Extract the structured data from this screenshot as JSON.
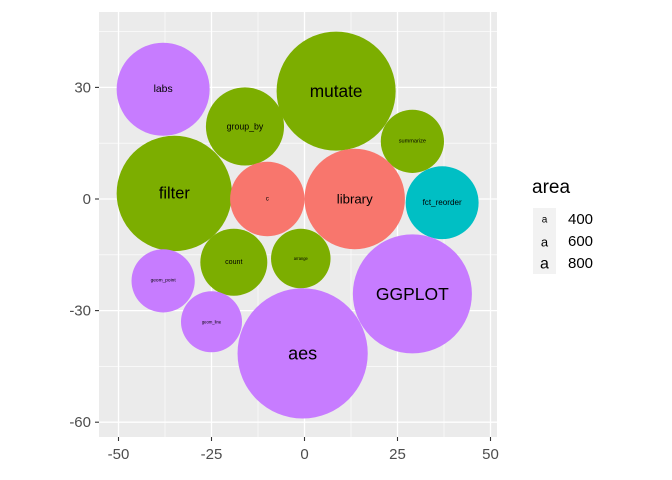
{
  "chart_data": {
    "type": "bubble",
    "x_ticks": [
      -50,
      -25,
      0,
      25,
      50
    ],
    "y_ticks": [
      -60,
      -30,
      0,
      30
    ],
    "x_tick_labels": [
      "-50",
      "-25",
      "0",
      "25",
      "50"
    ],
    "y_tick_labels": [
      "-60",
      "-30",
      "0",
      "30"
    ],
    "xlim": [
      -55,
      51
    ],
    "ylim": [
      -63,
      50
    ],
    "grid": true,
    "legend": {
      "title": "area",
      "placement": "right",
      "glyph": "a",
      "entries": [
        {
          "label": "400",
          "value": 400
        },
        {
          "label": "600",
          "value": 600
        },
        {
          "label": "800",
          "value": 800
        }
      ]
    },
    "colors": {
      "red": "#F8766D",
      "green": "#7CAE00",
      "teal": "#00BFC4",
      "purple": "#C77CFF",
      "panel": "#EBEBEB",
      "grid": "#FFFFFF"
    },
    "bubbles": [
      {
        "label": "labs",
        "x": -38,
        "y": 29.5,
        "r": 12.5,
        "color": "purple",
        "area": 420
      },
      {
        "label": "mutate",
        "x": 8.5,
        "y": 29,
        "r": 16,
        "color": "green",
        "area": 810
      },
      {
        "label": "group_by",
        "x": -16,
        "y": 19.5,
        "r": 10.5,
        "color": "green",
        "area": 330
      },
      {
        "label": "summarize",
        "x": 29,
        "y": 15.5,
        "r": 8.5,
        "color": "green",
        "area": 150
      },
      {
        "label": "filter",
        "x": -35,
        "y": 1.5,
        "r": 15.5,
        "color": "green",
        "area": 760
      },
      {
        "label": "c",
        "x": -10,
        "y": 0,
        "r": 10,
        "color": "red",
        "area": 180
      },
      {
        "label": "library",
        "x": 13.5,
        "y": 0,
        "r": 13.5,
        "color": "red",
        "area": 580
      },
      {
        "label": "fct_reorder",
        "x": 37,
        "y": -1,
        "r": 9.8,
        "color": "teal",
        "area": 290
      },
      {
        "label": "count",
        "x": -19,
        "y": -17,
        "r": 9,
        "color": "green",
        "area": 230
      },
      {
        "label": "arrange",
        "x": -1,
        "y": -16,
        "r": 8,
        "color": "green",
        "area": 60
      },
      {
        "label": "geom_point",
        "x": -38,
        "y": -22,
        "r": 8.5,
        "color": "purple",
        "area": 100
      },
      {
        "label": "GGPLOT",
        "x": 29,
        "y": -25.5,
        "r": 16,
        "color": "purple",
        "area": 820
      },
      {
        "label": "geom_line",
        "x": -25,
        "y": -33,
        "r": 8.2,
        "color": "purple",
        "area": 70
      },
      {
        "label": "aes",
        "x": -0.5,
        "y": -41.5,
        "r": 17.5,
        "color": "purple",
        "area": 850
      }
    ]
  }
}
